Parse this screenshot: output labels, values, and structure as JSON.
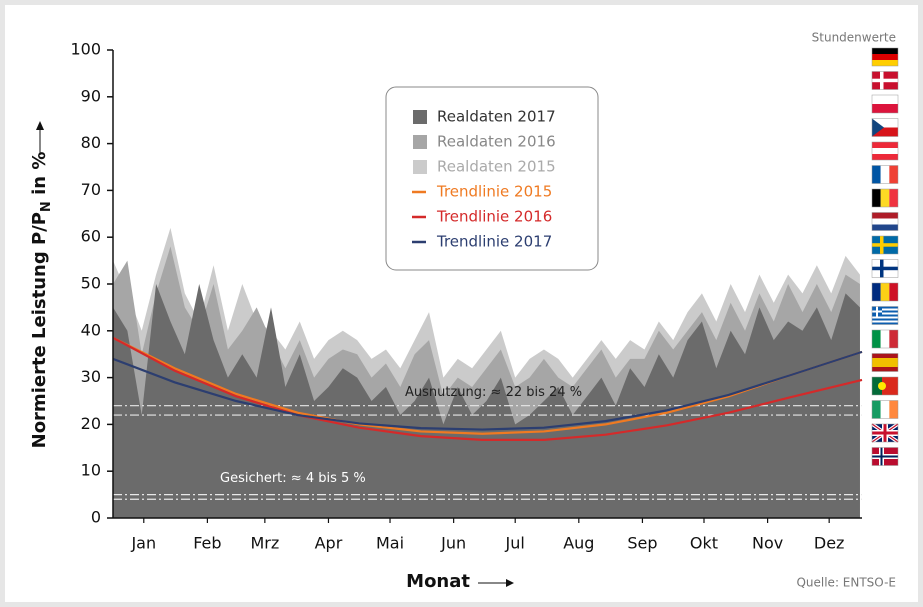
{
  "chart_data": {
    "type": "area",
    "note_top": "Stundenwerte",
    "source": "Quelle: ENTSO-E",
    "xlabel": "Monat",
    "ylabel": [
      "Normierte Leistung P/P",
      "N",
      " in %"
    ],
    "xlim": [
      0,
      365
    ],
    "xticks": [
      {
        "value": 15,
        "label": "Jan"
      },
      {
        "value": 46,
        "label": "Feb"
      },
      {
        "value": 74,
        "label": "Mrz"
      },
      {
        "value": 105,
        "label": "Apr"
      },
      {
        "value": 135,
        "label": "Mai"
      },
      {
        "value": 166,
        "label": "Jun"
      },
      {
        "value": 196,
        "label": "Jul"
      },
      {
        "value": 227,
        "label": "Aug"
      },
      {
        "value": 258,
        "label": "Sep"
      },
      {
        "value": 288,
        "label": "Okt"
      },
      {
        "value": 319,
        "label": "Nov"
      },
      {
        "value": 349,
        "label": "Dez"
      }
    ],
    "ylim": [
      0,
      100
    ],
    "yticks": [
      0,
      10,
      20,
      30,
      40,
      50,
      60,
      70,
      80,
      90,
      100
    ],
    "series": [
      {
        "name": "Realdaten 2017",
        "color": "#6b6b6b",
        "kind": "area",
        "x": [
          0,
          7,
          14,
          21,
          28,
          35,
          42,
          49,
          56,
          63,
          70,
          77,
          84,
          91,
          98,
          105,
          112,
          119,
          126,
          133,
          140,
          147,
          154,
          161,
          168,
          175,
          182,
          189,
          196,
          203,
          210,
          217,
          224,
          231,
          238,
          245,
          252,
          259,
          266,
          273,
          280,
          287,
          294,
          301,
          308,
          315,
          322,
          329,
          336,
          343,
          350,
          357,
          364
        ],
        "values": [
          45,
          40,
          22,
          50,
          42,
          35,
          50,
          38,
          30,
          35,
          30,
          45,
          28,
          35,
          25,
          28,
          32,
          30,
          25,
          28,
          22,
          25,
          30,
          20,
          28,
          22,
          25,
          30,
          20,
          22,
          25,
          28,
          22,
          26,
          30,
          24,
          32,
          28,
          35,
          30,
          38,
          42,
          32,
          40,
          35,
          45,
          38,
          42,
          40,
          45,
          38,
          48,
          45
        ]
      },
      {
        "name": "Realdaten 2016",
        "color": "#a6a6a6",
        "kind": "area",
        "x": [
          0,
          7,
          14,
          21,
          28,
          35,
          42,
          49,
          56,
          63,
          70,
          77,
          84,
          91,
          98,
          105,
          112,
          119,
          126,
          133,
          140,
          147,
          154,
          161,
          168,
          175,
          182,
          189,
          196,
          203,
          210,
          217,
          224,
          231,
          238,
          245,
          252,
          259,
          266,
          273,
          280,
          287,
          294,
          301,
          308,
          315,
          322,
          329,
          336,
          343,
          350,
          357,
          364
        ],
        "values": [
          50,
          55,
          35,
          48,
          58,
          45,
          40,
          50,
          36,
          40,
          45,
          38,
          32,
          38,
          30,
          34,
          36,
          35,
          30,
          33,
          28,
          35,
          38,
          26,
          30,
          28,
          32,
          36,
          28,
          30,
          34,
          30,
          28,
          32,
          36,
          30,
          34,
          34,
          40,
          36,
          40,
          44,
          38,
          46,
          40,
          48,
          42,
          50,
          44,
          50,
          44,
          52,
          50
        ]
      },
      {
        "name": "Realdaten 2015",
        "color": "#cbcbcb",
        "kind": "area",
        "x": [
          0,
          7,
          14,
          21,
          28,
          35,
          42,
          49,
          56,
          63,
          70,
          77,
          84,
          91,
          98,
          105,
          112,
          119,
          126,
          133,
          140,
          147,
          154,
          161,
          168,
          175,
          182,
          189,
          196,
          203,
          210,
          217,
          224,
          231,
          238,
          245,
          252,
          259,
          266,
          273,
          280,
          287,
          294,
          301,
          308,
          315,
          322,
          329,
          336,
          343,
          350,
          357,
          364
        ],
        "values": [
          55,
          48,
          40,
          52,
          62,
          48,
          42,
          54,
          40,
          50,
          42,
          40,
          36,
          42,
          34,
          38,
          40,
          38,
          34,
          36,
          32,
          38,
          44,
          30,
          34,
          32,
          36,
          40,
          30,
          34,
          36,
          34,
          30,
          34,
          38,
          34,
          38,
          36,
          42,
          38,
          44,
          48,
          42,
          50,
          44,
          52,
          46,
          52,
          48,
          54,
          48,
          56,
          52
        ]
      },
      {
        "name": "Trendlinie 2015",
        "color": "#ef7a22",
        "kind": "line",
        "x": [
          0,
          30,
          60,
          90,
          120,
          150,
          180,
          210,
          240,
          270,
          300,
          330,
          365
        ],
        "values": [
          38.5,
          32,
          26.5,
          22.5,
          20,
          18.5,
          18,
          18.5,
          20,
          22.5,
          26,
          30.5,
          35.5
        ]
      },
      {
        "name": "Trendlinie 2016",
        "color": "#d42a2a",
        "kind": "line",
        "x": [
          0,
          30,
          60,
          90,
          120,
          150,
          180,
          210,
          240,
          270,
          300,
          330,
          365
        ],
        "values": [
          38.5,
          31.5,
          26,
          22,
          19.3,
          17.5,
          16.7,
          16.7,
          17.8,
          19.8,
          22.5,
          25.8,
          29.5
        ]
      },
      {
        "name": "Trendlinie 2017",
        "color": "#2c3e70",
        "kind": "line",
        "x": [
          0,
          30,
          60,
          90,
          120,
          150,
          180,
          210,
          240,
          270,
          300,
          330,
          365
        ],
        "values": [
          34,
          29,
          25,
          22,
          20.2,
          19.2,
          18.9,
          19.3,
          20.7,
          23,
          26.3,
          30.5,
          35.5
        ]
      }
    ],
    "reference_lines": [
      {
        "value": 24,
        "label": "Ausnutzung: ≈ 22 bis 24 %"
      },
      {
        "value": 22
      },
      {
        "value": 5,
        "label": "Gesichert: ≈ 4 bis 5 %"
      },
      {
        "value": 4
      }
    ]
  }
}
